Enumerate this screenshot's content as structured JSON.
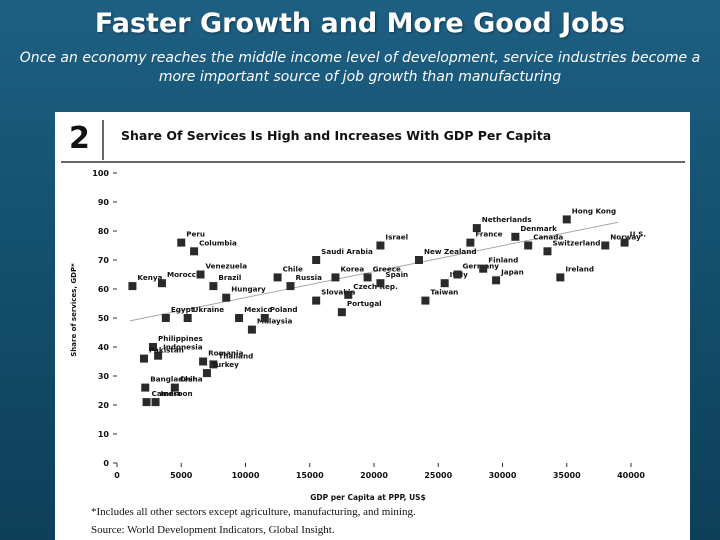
{
  "slide": {
    "title": "Faster Growth and More Good Jobs",
    "subtitle": "Once an economy reaches the middle income level of development, service industries become a more important source of job growth than manufacturing"
  },
  "figure": {
    "number": "2",
    "footnote": "*Includes all other sectors except agriculture, manufacturing, and mining.",
    "source": "Source:   World Development Indicators, Global Insight."
  },
  "colors": {
    "marker": "#2a2a2a",
    "trendline": "#a8a8a8",
    "header_rule": "#333333"
  },
  "chart_data": {
    "type": "scatter",
    "title": "Share Of Services Is High and Increases With GDP Per Capita",
    "xlabel": "GDP per Capita at PPP, US$",
    "ylabel": "Share of services, GDP*",
    "xlim": [
      0,
      40000
    ],
    "ylim": [
      0,
      100
    ],
    "xticks": [
      0,
      5000,
      10000,
      15000,
      20000,
      25000,
      30000,
      35000,
      40000
    ],
    "yticks": [
      0,
      10,
      20,
      30,
      40,
      50,
      60,
      70,
      80,
      90,
      100
    ],
    "trendline": {
      "from": [
        1000,
        49
      ],
      "to": [
        39000,
        83
      ]
    },
    "points": [
      {
        "label": "Kenya",
        "x": 1200,
        "y": 61
      },
      {
        "label": "Morocco",
        "x": 3500,
        "y": 62
      },
      {
        "label": "Peru",
        "x": 5000,
        "y": 76
      },
      {
        "label": "Columbia",
        "x": 6000,
        "y": 73
      },
      {
        "label": "Venezuela",
        "x": 6500,
        "y": 65
      },
      {
        "label": "Brazil",
        "x": 7500,
        "y": 61
      },
      {
        "label": "Egypt",
        "x": 3800,
        "y": 50
      },
      {
        "label": "Ukraine",
        "x": 5500,
        "y": 50
      },
      {
        "label": "Philippines",
        "x": 2800,
        "y": 40
      },
      {
        "label": "Indonesia",
        "x": 3200,
        "y": 37
      },
      {
        "label": "Pakistan",
        "x": 2100,
        "y": 36
      },
      {
        "label": "Romania",
        "x": 6700,
        "y": 35
      },
      {
        "label": "Thailand",
        "x": 7500,
        "y": 34
      },
      {
        "label": "Turkey",
        "x": 7000,
        "y": 31
      },
      {
        "label": "Bangladesh",
        "x": 2200,
        "y": 26
      },
      {
        "label": "China",
        "x": 4500,
        "y": 26
      },
      {
        "label": "Cameroon",
        "x": 2300,
        "y": 21
      },
      {
        "label": "India",
        "x": 3000,
        "y": 21
      },
      {
        "label": "Hungary",
        "x": 8500,
        "y": 57
      },
      {
        "label": "Mexico",
        "x": 9500,
        "y": 50
      },
      {
        "label": "Malaysia",
        "x": 10500,
        "y": 46
      },
      {
        "label": "Poland",
        "x": 11500,
        "y": 50
      },
      {
        "label": "Chile",
        "x": 12500,
        "y": 64
      },
      {
        "label": "Russia",
        "x": 13500,
        "y": 61
      },
      {
        "label": "Saudi Arabia",
        "x": 15500,
        "y": 70
      },
      {
        "label": "Slovakia",
        "x": 15500,
        "y": 56
      },
      {
        "label": "Korea",
        "x": 17000,
        "y": 64
      },
      {
        "label": "Greece",
        "x": 19500,
        "y": 64
      },
      {
        "label": "Czech Rep.",
        "x": 18000,
        "y": 58
      },
      {
        "label": "Portugal",
        "x": 17500,
        "y": 52
      },
      {
        "label": "Spain",
        "x": 20500,
        "y": 62
      },
      {
        "label": "Israel",
        "x": 20500,
        "y": 75
      },
      {
        "label": "New Zealand",
        "x": 23500,
        "y": 70
      },
      {
        "label": "Taiwan",
        "x": 24000,
        "y": 56
      },
      {
        "label": "Italy",
        "x": 25500,
        "y": 62
      },
      {
        "label": "Netherlands",
        "x": 28000,
        "y": 81
      },
      {
        "label": "France",
        "x": 27500,
        "y": 76
      },
      {
        "label": "Germany",
        "x": 26500,
        "y": 65
      },
      {
        "label": "Finland",
        "x": 28500,
        "y": 67
      },
      {
        "label": "Japan",
        "x": 29500,
        "y": 63
      },
      {
        "label": "Denmark",
        "x": 31000,
        "y": 78
      },
      {
        "label": "Canada",
        "x": 32000,
        "y": 75
      },
      {
        "label": "Switzerland",
        "x": 33500,
        "y": 73
      },
      {
        "label": "Hong Kong",
        "x": 35000,
        "y": 84
      },
      {
        "label": "Ireland",
        "x": 34500,
        "y": 64
      },
      {
        "label": "Norway",
        "x": 38000,
        "y": 75
      },
      {
        "label": "U.S.",
        "x": 39500,
        "y": 76
      }
    ]
  }
}
